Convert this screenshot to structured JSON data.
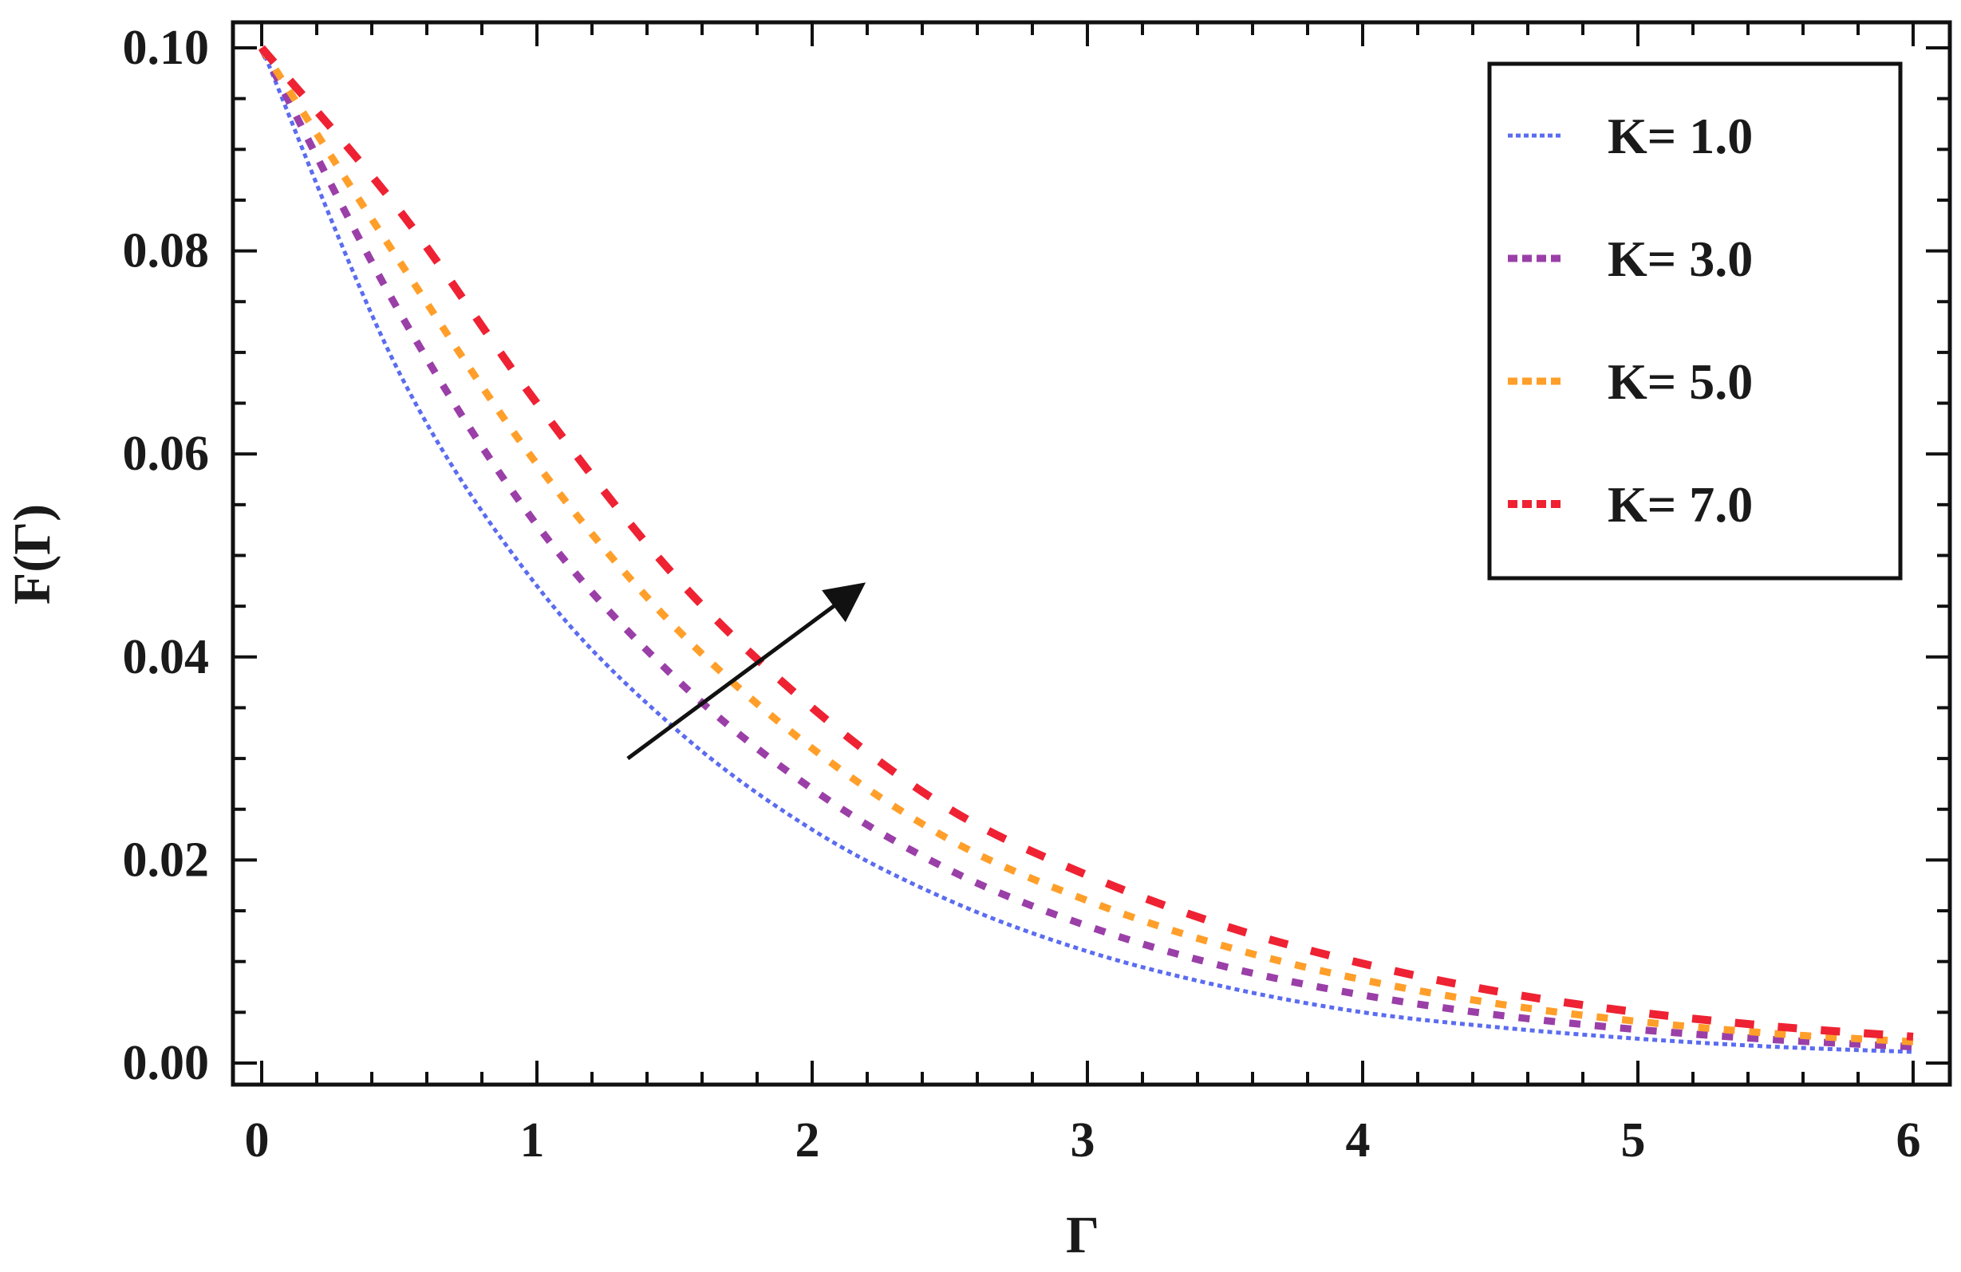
{
  "chart_data": {
    "type": "line",
    "xlabel": "Γ",
    "ylabel": "F(Γ)",
    "xlim": [
      0,
      6
    ],
    "ylim": [
      0,
      0.1
    ],
    "x_ticks": [
      "0",
      "1",
      "2",
      "3",
      "4",
      "5",
      "6"
    ],
    "y_ticks": [
      "0.00",
      "0.02",
      "0.04",
      "0.06",
      "0.08",
      "0.10"
    ],
    "x_tick_values": [
      0,
      1,
      2,
      3,
      4,
      5,
      6
    ],
    "y_tick_values": [
      0,
      0.02,
      0.04,
      0.06,
      0.08,
      0.1
    ],
    "grid": false,
    "legend_position": "top-right",
    "x": [
      0,
      0.5,
      1,
      1.5,
      2,
      2.5,
      3,
      3.5,
      4,
      4.5,
      5,
      5.5,
      6
    ],
    "series": [
      {
        "name": "K= 1.0",
        "color": "#5b6cf0",
        "dash": "dotted",
        "values": [
          0.1,
          0.068,
          0.047,
          0.033,
          0.023,
          0.016,
          0.011,
          0.0075,
          0.005,
          0.0035,
          0.0024,
          0.0016,
          0.0011
        ]
      },
      {
        "name": "K= 3.0",
        "color": "#9b3fa8",
        "dash": "dashed",
        "values": [
          0.1,
          0.074,
          0.053,
          0.038,
          0.027,
          0.019,
          0.0135,
          0.0095,
          0.0067,
          0.0047,
          0.0033,
          0.0023,
          0.0016
        ]
      },
      {
        "name": "K= 5.0",
        "color": "#ff9f2a",
        "dash": "dashed",
        "values": [
          0.1,
          0.079,
          0.059,
          0.043,
          0.031,
          0.022,
          0.016,
          0.0115,
          0.0082,
          0.0058,
          0.0041,
          0.0029,
          0.0021
        ]
      },
      {
        "name": "K= 7.0",
        "color": "#ee2233",
        "dash": "long-dashed",
        "values": [
          0.1,
          0.084,
          0.065,
          0.048,
          0.035,
          0.025,
          0.0185,
          0.0135,
          0.0098,
          0.007,
          0.005,
          0.0036,
          0.0026
        ]
      }
    ],
    "annotations": [
      {
        "type": "arrow",
        "direction": "increasing K",
        "from": [
          1.33,
          0.03
        ],
        "to": [
          2.2,
          0.0475
        ],
        "color": "#111111"
      }
    ]
  }
}
